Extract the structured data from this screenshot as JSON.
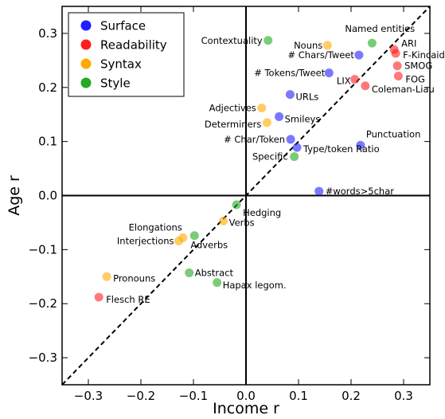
{
  "chart_data": {
    "type": "scatter",
    "xlabel": "Income r",
    "ylabel": "Age r",
    "xlim": [
      -0.35,
      0.35
    ],
    "ylim": [
      -0.35,
      0.35
    ],
    "xticks": [
      -0.3,
      -0.2,
      -0.1,
      0.0,
      0.1,
      0.2,
      0.3
    ],
    "yticks": [
      -0.3,
      -0.2,
      -0.1,
      0.0,
      0.1,
      0.2,
      0.3
    ],
    "xtick_labels": [
      "−0.3",
      "−0.2",
      "−0.1",
      "0.0",
      "0.1",
      "0.2",
      "0.3"
    ],
    "ytick_labels": [
      "−0.3",
      "−0.2",
      "−0.1",
      "0.0",
      "0.1",
      "0.2",
      "0.3"
    ],
    "grid": false,
    "reference_lines": [
      "x=0",
      "y=0",
      "y=x dashed"
    ],
    "legend_position": "top-left",
    "series": [
      {
        "name": "Surface",
        "color": "#1f1fff",
        "points": [
          {
            "label": "# Chars/Tweet",
            "x": 0.215,
            "y": 0.26
          },
          {
            "label": "# Tokens/Tweet",
            "x": 0.158,
            "y": 0.227
          },
          {
            "label": "URLs",
            "x": 0.084,
            "y": 0.187
          },
          {
            "label": "Smileys",
            "x": 0.063,
            "y": 0.146
          },
          {
            "label": "# Char/Token",
            "x": 0.085,
            "y": 0.104
          },
          {
            "label": "Type/token Ratio",
            "x": 0.097,
            "y": 0.089
          },
          {
            "label": "Punctuation",
            "x": 0.218,
            "y": 0.093
          },
          {
            "label": "#words>5char",
            "x": 0.139,
            "y": 0.008
          }
        ]
      },
      {
        "name": "Readability",
        "color": "#ff1f1f",
        "points": [
          {
            "label": "ARI",
            "x": 0.282,
            "y": 0.27
          },
          {
            "label": "F-Kincaid",
            "x": 0.285,
            "y": 0.263
          },
          {
            "label": "SMOG",
            "x": 0.288,
            "y": 0.24
          },
          {
            "label": "FOG",
            "x": 0.29,
            "y": 0.221
          },
          {
            "label": "LIX",
            "x": 0.207,
            "y": 0.215
          },
          {
            "label": "Coleman-Liau",
            "x": 0.227,
            "y": 0.203
          },
          {
            "label": "Flesch RE",
            "x": -0.28,
            "y": -0.188
          }
        ]
      },
      {
        "name": "Syntax",
        "color": "#ffaa00",
        "points": [
          {
            "label": "Nouns",
            "x": 0.155,
            "y": 0.278
          },
          {
            "label": "Adjectives",
            "x": 0.03,
            "y": 0.162
          },
          {
            "label": "Determiners",
            "x": 0.04,
            "y": 0.135
          },
          {
            "label": "Verbs",
            "x": -0.043,
            "y": -0.047
          },
          {
            "label": "Elongations",
            "x": -0.12,
            "y": -0.078
          },
          {
            "label": "Interjections",
            "x": -0.128,
            "y": -0.084
          },
          {
            "label": "Pronouns",
            "x": -0.265,
            "y": -0.15
          }
        ]
      },
      {
        "name": "Style",
        "color": "#22aa22",
        "points": [
          {
            "label": "Contextuality",
            "x": 0.042,
            "y": 0.287
          },
          {
            "label": "Named entities",
            "x": 0.24,
            "y": 0.282
          },
          {
            "label": "Specific",
            "x": 0.092,
            "y": 0.072
          },
          {
            "label": "Hedging",
            "x": -0.018,
            "y": -0.017
          },
          {
            "label": "Adverbs",
            "x": -0.098,
            "y": -0.074
          },
          {
            "label": "Abstract",
            "x": -0.108,
            "y": -0.143
          },
          {
            "label": "Hapax legom.",
            "x": -0.055,
            "y": -0.161
          }
        ]
      }
    ]
  }
}
